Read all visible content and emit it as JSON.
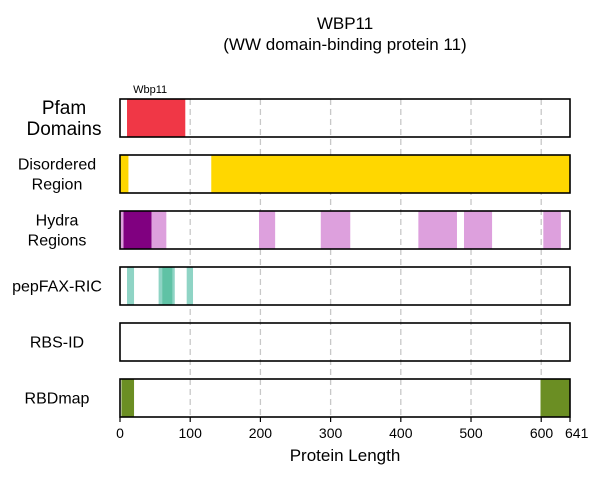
{
  "chart_data": {
    "type": "bar",
    "title": "WBP11",
    "subtitle": "(WW domain-binding protein 11)",
    "xlabel": "Protein Length",
    "xlim": [
      0,
      641
    ],
    "xticks": [
      0,
      100,
      200,
      300,
      400,
      500,
      600,
      641
    ],
    "grid_lines_at": [
      100,
      200,
      300,
      400,
      500,
      600
    ],
    "grid": "vertical dashed",
    "tracks": [
      {
        "label": [
          "Pfam",
          "Domains"
        ],
        "segments": [
          {
            "start": 10,
            "end": 93,
            "color": "#f03746",
            "label": "Wbp11"
          }
        ]
      },
      {
        "label": [
          "Disordered",
          "Region"
        ],
        "segments": [
          {
            "start": 0,
            "end": 12,
            "color": "#ffd700"
          },
          {
            "start": 130,
            "end": 641,
            "color": "#ffd700"
          }
        ]
      },
      {
        "label": [
          "Hydra",
          "Regions"
        ],
        "segments": [
          {
            "start": 0,
            "end": 5,
            "color": "#dda0dd"
          },
          {
            "start": 5,
            "end": 45,
            "color": "#800080"
          },
          {
            "start": 45,
            "end": 66,
            "color": "#dda0dd"
          },
          {
            "start": 198,
            "end": 221,
            "color": "#dda0dd"
          },
          {
            "start": 286,
            "end": 328,
            "color": "#dda0dd"
          },
          {
            "start": 425,
            "end": 480,
            "color": "#dda0dd"
          },
          {
            "start": 490,
            "end": 530,
            "color": "#dda0dd"
          },
          {
            "start": 603,
            "end": 628,
            "color": "#dda0dd"
          }
        ]
      },
      {
        "label": [
          "pepFAX-RIC"
        ],
        "segments": [
          {
            "start": 10,
            "end": 20,
            "color": "#8fd4c5"
          },
          {
            "start": 55,
            "end": 60,
            "color": "#8fd4c5"
          },
          {
            "start": 60,
            "end": 75,
            "color": "#5fc2a5"
          },
          {
            "start": 75,
            "end": 78,
            "color": "#8fd4c5"
          },
          {
            "start": 95,
            "end": 104,
            "color": "#8fd4c5"
          }
        ]
      },
      {
        "label": [
          "RBS-ID"
        ],
        "segments": []
      },
      {
        "label": [
          "RBDmap"
        ],
        "segments": [
          {
            "start": 2,
            "end": 20,
            "color": "#6b8e23"
          },
          {
            "start": 599,
            "end": 641,
            "color": "#6b8e23"
          }
        ]
      }
    ]
  }
}
